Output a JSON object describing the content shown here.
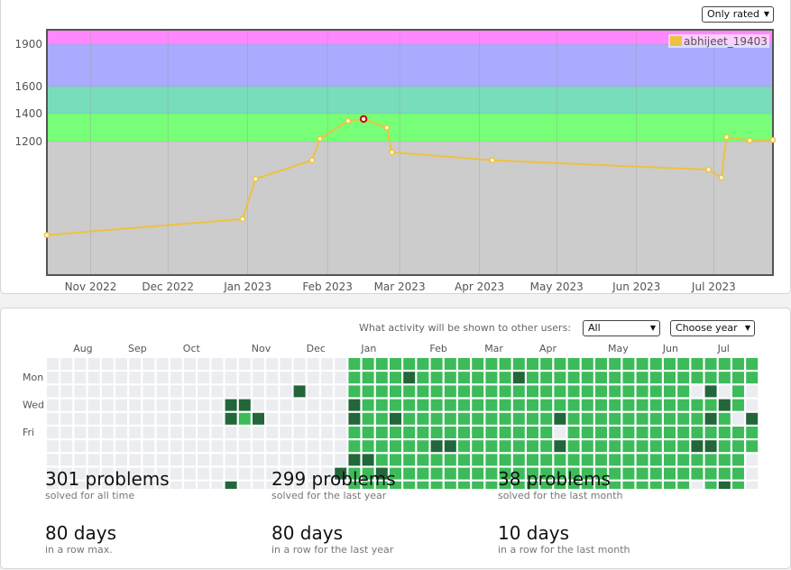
{
  "rating_filter": "Only rated",
  "chart_data": {
    "type": "line",
    "title": "",
    "xlabel": "",
    "ylabel": "",
    "series": [
      {
        "name": "abhijeet_19403",
        "color": "#edc240",
        "points": [
          [
            "2022-10-15",
            1060
          ],
          [
            "2022-12-30",
            1084
          ],
          [
            "2023-01-04",
            1144
          ],
          [
            "2023-01-26",
            1172
          ],
          [
            "2023-01-29",
            1220
          ],
          [
            "2023-02-09",
            1348
          ],
          [
            "2023-02-15",
            1362
          ],
          [
            "2023-02-24",
            1300
          ],
          [
            "2023-02-26",
            1184
          ],
          [
            "2023-04-06",
            1172
          ],
          [
            "2023-06-29",
            1158
          ],
          [
            "2023-07-04",
            1146
          ],
          [
            "2023-07-06",
            1232
          ],
          [
            "2023-07-15",
            1208
          ],
          [
            "2023-07-24",
            1212
          ]
        ],
        "highlight_index": 6
      }
    ],
    "x_ticks": [
      "Nov 2022",
      "Dec 2022",
      "Jan 2023",
      "Feb 2023",
      "Mar 2023",
      "Apr 2023",
      "May 2023",
      "Jun 2023",
      "Jul 2023"
    ],
    "x_tick_dates": [
      "2022-11-01",
      "2022-12-01",
      "2023-01-01",
      "2023-02-01",
      "2023-03-01",
      "2023-04-01",
      "2023-05-01",
      "2023-06-01",
      "2023-07-01"
    ],
    "x_range": [
      "2022-10-15",
      "2023-07-24"
    ],
    "y_ticks": [
      1200,
      1400,
      1600,
      1900
    ],
    "bands": [
      {
        "from": 1000,
        "to": 1200,
        "color": "#cccccc"
      },
      {
        "from": 1200,
        "to": 1400,
        "color": "#77ff77"
      },
      {
        "from": 1400,
        "to": 1600,
        "color": "#77ddbb"
      },
      {
        "from": 1600,
        "to": 1900,
        "color": "#aaaaff"
      },
      {
        "from": 1900,
        "to": 2000,
        "color": "#ff88ff"
      }
    ],
    "y_range": [
      1000,
      2000
    ],
    "y_scale": "piecewise: 1000-1200 stretched, bands compressed above",
    "legend_position": "top-right",
    "grid": true
  },
  "activity": {
    "label": "What activity will be shown to other users:",
    "visibility_select": "All",
    "year_select": "Choose year",
    "month_labels": [
      "Aug",
      "Sep",
      "Oct",
      "Nov",
      "Dec",
      "Jan",
      "Feb",
      "Mar",
      "Apr",
      "May",
      "Jun",
      "Jul"
    ],
    "month_label_weeks": [
      1,
      5,
      9,
      14,
      18,
      22,
      27,
      31,
      35,
      40,
      44,
      48
    ],
    "day_labels": [
      "Mon",
      "Wed",
      "Fri"
    ],
    "legend_colors": [
      "#ebedf0",
      "#7fd38f",
      "#3dbb5a",
      "#22663a"
    ],
    "weeks": 52,
    "levels": [
      [
        0,
        0,
        0,
        0,
        0,
        0,
        0,
        0,
        0,
        0,
        0,
        0,
        0,
        0,
        0,
        0,
        0,
        0,
        0,
        0,
        0,
        0,
        2,
        2,
        2,
        2,
        2,
        2,
        2,
        2,
        2,
        2,
        2,
        2,
        2,
        2,
        2,
        2,
        2,
        2,
        2,
        2,
        2,
        2,
        2,
        2,
        2,
        2,
        2,
        2,
        2,
        2
      ],
      [
        0,
        0,
        0,
        0,
        0,
        0,
        0,
        0,
        0,
        0,
        0,
        0,
        0,
        0,
        0,
        0,
        0,
        0,
        0,
        0,
        0,
        0,
        2,
        2,
        2,
        2,
        3,
        2,
        2,
        2,
        2,
        2,
        2,
        2,
        3,
        2,
        2,
        2,
        2,
        2,
        2,
        2,
        2,
        2,
        2,
        2,
        2,
        2,
        2,
        2,
        2,
        2
      ],
      [
        0,
        0,
        0,
        0,
        0,
        0,
        0,
        0,
        0,
        0,
        0,
        0,
        0,
        0,
        0,
        0,
        0,
        0,
        3,
        0,
        0,
        0,
        2,
        2,
        2,
        2,
        2,
        2,
        2,
        2,
        2,
        2,
        2,
        2,
        2,
        2,
        2,
        2,
        2,
        2,
        2,
        2,
        2,
        2,
        2,
        2,
        2,
        0,
        3,
        0,
        2,
        0
      ],
      [
        0,
        0,
        0,
        0,
        0,
        0,
        0,
        0,
        0,
        0,
        0,
        0,
        0,
        3,
        3,
        0,
        0,
        0,
        0,
        0,
        0,
        0,
        3,
        2,
        2,
        2,
        2,
        2,
        2,
        2,
        2,
        2,
        2,
        2,
        2,
        2,
        2,
        2,
        2,
        2,
        2,
        2,
        2,
        2,
        2,
        2,
        2,
        2,
        2,
        3,
        2,
        0
      ],
      [
        0,
        0,
        0,
        0,
        0,
        0,
        0,
        0,
        0,
        0,
        0,
        0,
        0,
        3,
        2,
        3,
        0,
        0,
        0,
        0,
        0,
        0,
        3,
        2,
        2,
        3,
        2,
        2,
        2,
        2,
        2,
        2,
        2,
        2,
        2,
        2,
        2,
        3,
        2,
        2,
        2,
        2,
        2,
        2,
        2,
        2,
        2,
        2,
        3,
        2,
        0,
        3
      ],
      [
        0,
        0,
        0,
        0,
        0,
        0,
        0,
        0,
        0,
        0,
        0,
        0,
        0,
        0,
        0,
        0,
        0,
        0,
        0,
        0,
        0,
        0,
        2,
        2,
        2,
        2,
        2,
        2,
        2,
        2,
        2,
        2,
        2,
        2,
        2,
        2,
        2,
        0,
        2,
        2,
        2,
        2,
        2,
        2,
        2,
        2,
        2,
        2,
        2,
        2,
        2,
        2
      ],
      [
        0,
        0,
        0,
        0,
        0,
        0,
        0,
        0,
        0,
        0,
        0,
        0,
        0,
        0,
        0,
        0,
        0,
        0,
        0,
        0,
        0,
        0,
        2,
        2,
        2,
        2,
        2,
        2,
        3,
        3,
        2,
        2,
        2,
        2,
        2,
        2,
        2,
        3,
        2,
        2,
        2,
        2,
        2,
        2,
        2,
        2,
        2,
        3,
        3,
        2,
        2,
        2
      ],
      [
        0,
        0,
        0,
        0,
        0,
        0,
        0,
        0,
        0,
        0,
        0,
        0,
        0,
        0,
        0,
        0,
        0,
        0,
        0,
        0,
        0,
        0,
        3,
        3,
        2,
        2,
        2,
        2,
        2,
        2,
        2,
        2,
        2,
        2,
        2,
        2,
        2,
        2,
        2,
        2,
        2,
        2,
        2,
        2,
        2,
        2,
        2,
        2,
        2,
        2,
        2,
        0
      ],
      [
        0,
        0,
        0,
        0,
        0,
        0,
        0,
        0,
        0,
        0,
        0,
        0,
        0,
        0,
        0,
        0,
        0,
        0,
        0,
        0,
        0,
        3,
        2,
        2,
        3,
        2,
        2,
        2,
        2,
        2,
        2,
        2,
        2,
        2,
        2,
        2,
        2,
        2,
        2,
        2,
        2,
        2,
        2,
        2,
        2,
        2,
        2,
        2,
        2,
        2,
        2,
        0
      ],
      [
        0,
        0,
        0,
        0,
        0,
        0,
        0,
        0,
        0,
        0,
        0,
        0,
        0,
        3,
        0,
        0,
        0,
        0,
        0,
        0,
        0,
        0,
        2,
        2,
        2,
        2,
        2,
        2,
        2,
        2,
        2,
        2,
        2,
        2,
        2,
        2,
        2,
        2,
        2,
        2,
        2,
        2,
        2,
        2,
        2,
        2,
        2,
        0,
        2,
        3,
        2,
        0
      ]
    ],
    "stats": [
      {
        "big": "301 problems",
        "small": "solved for all time"
      },
      {
        "big": "299 problems",
        "small": "solved for the last year"
      },
      {
        "big": "38 problems",
        "small": "solved for the last month"
      },
      {
        "big": "80 days",
        "small": "in a row max."
      },
      {
        "big": "80 days",
        "small": "in a row for the last year"
      },
      {
        "big": "10 days",
        "small": "in a row for the last month"
      }
    ]
  }
}
